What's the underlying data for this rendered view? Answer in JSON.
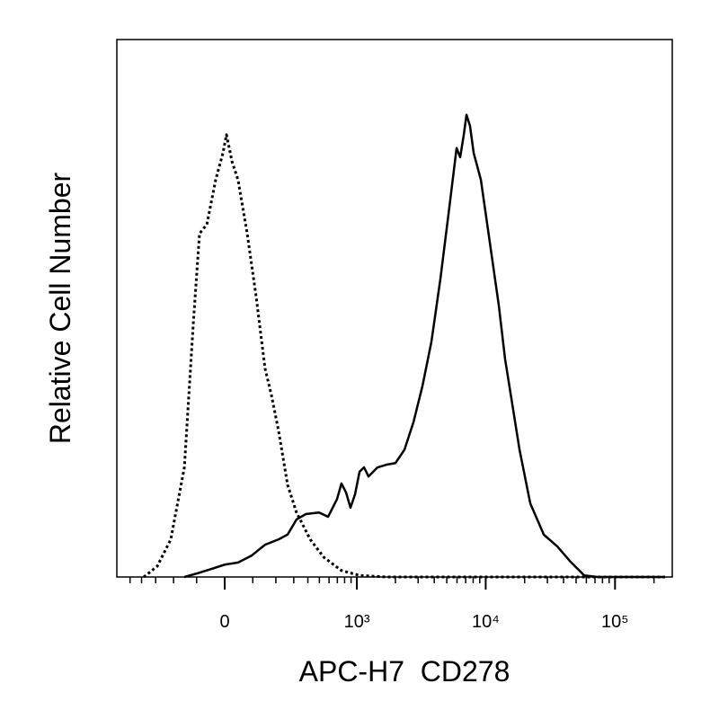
{
  "chart_data": {
    "type": "line",
    "x_label": "APC-H7  CD278",
    "y_label": "Relative Cell Number",
    "x_scale": "biexponential",
    "xlim": [
      -641,
      277000
    ],
    "ylim": [
      0,
      100
    ],
    "xticks": [
      {
        "value": 0,
        "label": "0"
      },
      {
        "value": 1000,
        "label": "10³"
      },
      {
        "value": 10000,
        "label": "10⁴"
      },
      {
        "value": 100000,
        "label": "10⁵"
      }
    ],
    "xminor": [
      -500,
      -400,
      -300,
      -200,
      -100,
      100,
      200,
      300,
      400,
      500,
      600,
      700,
      800,
      900,
      2000,
      3000,
      4000,
      5000,
      6000,
      7000,
      8000,
      9000,
      20000,
      30000,
      40000,
      50000,
      60000,
      70000,
      80000,
      90000,
      200000
    ],
    "series": [
      {
        "color": "#000000",
        "dash": "dotted",
        "x": [
          -383,
          -290,
          -214,
          -150,
          -113,
          -89,
          -62,
          -31,
          -6,
          6,
          25,
          46,
          79,
          113,
          150,
          179,
          214,
          263,
          318,
          419,
          542,
          755,
          1050,
          1705,
          243840
        ],
        "values": [
          0,
          2.0,
          7.0,
          20.4,
          47.2,
          63.9,
          65.6,
          73.9,
          78.9,
          82.3,
          77.3,
          73.9,
          63.9,
          52.2,
          38.8,
          33.8,
          27.1,
          17.1,
          12.0,
          7.0,
          3.7,
          1.2,
          0.3,
          0,
          0
        ]
      },
      {
        "color": "#000000",
        "dash": "solid",
        "x": [
          -150,
          -96,
          -46,
          0,
          46,
          96,
          150,
          214,
          263,
          318,
          383,
          497,
          589,
          696,
          755,
          822,
          891,
          968,
          1050,
          1139,
          1235,
          1452,
          1705,
          2003,
          2352,
          2761,
          3239,
          3805,
          4466,
          5240,
          5955,
          6349,
          6772,
          7104,
          7565,
          8074,
          9178,
          10771,
          12634,
          14131,
          16070,
          18259,
          22118,
          28109,
          35750,
          45446,
          57773,
          73440,
          243840
        ],
        "values": [
          0,
          0.7,
          1.5,
          2.3,
          2.7,
          4.0,
          6.0,
          7.0,
          7.9,
          10.7,
          11.7,
          12.0,
          11.2,
          14.5,
          17.4,
          15.7,
          12.9,
          15.4,
          19.6,
          20.4,
          18.7,
          20.4,
          20.9,
          21.2,
          23.7,
          28.8,
          35.5,
          43.8,
          55.5,
          68.9,
          79.8,
          78.1,
          82.3,
          86.0,
          83.9,
          78.9,
          73.9,
          62.2,
          50.5,
          40.5,
          32.1,
          23.7,
          13.7,
          7.9,
          5.7,
          2.8,
          0.3,
          0,
          0
        ]
      }
    ]
  }
}
